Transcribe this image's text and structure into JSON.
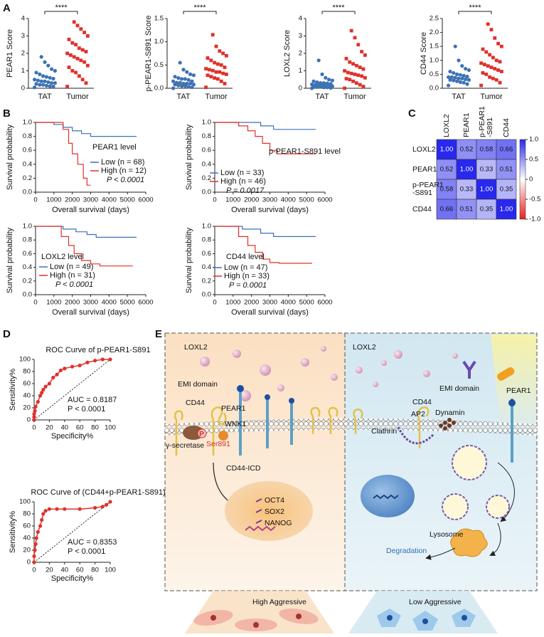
{
  "panel_labels": [
    "A",
    "B",
    "C",
    "D",
    "E"
  ],
  "chart_data": [
    {
      "type": "strip",
      "ylabel": "PEAR1 Score",
      "ylim": [
        0,
        4
      ],
      "yticks": [
        0,
        1,
        2,
        3,
        4
      ],
      "categories": [
        "TAT",
        "Tumor"
      ],
      "colors": [
        "#3d72b4",
        "#e0312b"
      ],
      "values": [
        [
          0.05,
          0.1,
          0.12,
          0.15,
          0.2,
          0.2,
          0.25,
          0.3,
          0.3,
          0.35,
          0.4,
          0.4,
          0.45,
          0.5,
          0.55,
          0.6,
          0.65,
          0.7,
          0.8,
          0.9,
          1.0,
          1.1,
          1.3,
          1.5,
          1.8
        ],
        [
          0.1,
          0.3,
          0.5,
          0.7,
          0.9,
          1.0,
          1.2,
          1.3,
          1.5,
          1.6,
          1.7,
          1.8,
          1.9,
          2.0,
          2.1,
          2.2,
          2.3,
          2.5,
          2.6,
          2.8,
          3.0,
          3.2,
          3.4,
          3.6,
          3.8
        ]
      ],
      "annotation": "****"
    },
    {
      "type": "strip",
      "ylabel": "p-PEAR1-S891 Score",
      "ylim": [
        0,
        1.5
      ],
      "yticks": [
        {
          "value": 0,
          "label": "0.0"
        },
        0.5,
        {
          "value": 1,
          "label": "1.0"
        },
        1.5
      ],
      "categories": [
        "TAT",
        "Tumor"
      ],
      "colors": [
        "#3d72b4",
        "#e0312b"
      ],
      "values": [
        [
          0,
          0.02,
          0.03,
          0.05,
          0.05,
          0.06,
          0.08,
          0.08,
          0.1,
          0.1,
          0.1,
          0.12,
          0.12,
          0.15,
          0.15,
          0.18,
          0.2,
          0.2,
          0.22,
          0.25,
          0.28,
          0.3,
          0.35,
          0.4,
          0.55
        ],
        [
          0.02,
          0.1,
          0.15,
          0.2,
          0.22,
          0.25,
          0.28,
          0.3,
          0.32,
          0.35,
          0.35,
          0.38,
          0.4,
          0.42,
          0.45,
          0.5,
          0.52,
          0.55,
          0.6,
          0.65,
          0.7,
          0.75,
          0.8,
          0.9,
          1.15
        ]
      ],
      "annotation": "****"
    },
    {
      "type": "strip",
      "ylabel": "LOXL2 Score",
      "ylim": [
        0,
        4
      ],
      "yticks": [
        0,
        1,
        2,
        3,
        4
      ],
      "categories": [
        "TAT",
        "Tumor"
      ],
      "colors": [
        "#3d72b4",
        "#e0312b"
      ],
      "values": [
        [
          0,
          0.02,
          0.05,
          0.05,
          0.08,
          0.1,
          0.1,
          0.12,
          0.15,
          0.15,
          0.18,
          0.2,
          0.2,
          0.22,
          0.25,
          0.28,
          0.3,
          0.3,
          0.35,
          0.4,
          0.45,
          0.5,
          0.6,
          0.8,
          1.6
        ],
        [
          0,
          0.1,
          0.2,
          0.3,
          0.4,
          0.5,
          0.55,
          0.6,
          0.7,
          0.75,
          0.8,
          0.85,
          0.9,
          1.0,
          1.1,
          1.2,
          1.3,
          1.4,
          1.5,
          1.7,
          1.9,
          2.1,
          2.5,
          2.9,
          3.3
        ]
      ],
      "annotation": "****"
    },
    {
      "type": "strip",
      "ylabel": "CD44  Score",
      "ylim": [
        0,
        2.5
      ],
      "yticks": [
        {
          "value": 0,
          "label": "0.0"
        },
        0.5,
        {
          "value": 1,
          "label": "1.0"
        },
        1.5,
        {
          "value": 2,
          "label": "2.0"
        },
        2.5
      ],
      "categories": [
        "TAT",
        "Tumor"
      ],
      "colors": [
        "#3d72b4",
        "#e0312b"
      ],
      "values": [
        [
          0.1,
          0.15,
          0.2,
          0.22,
          0.25,
          0.28,
          0.3,
          0.3,
          0.32,
          0.35,
          0.35,
          0.38,
          0.4,
          0.4,
          0.42,
          0.45,
          0.48,
          0.5,
          0.55,
          0.6,
          0.65,
          0.7,
          0.8,
          1.0,
          1.5
        ],
        [
          0.1,
          0.2,
          0.3,
          0.35,
          0.4,
          0.5,
          0.55,
          0.6,
          0.65,
          0.7,
          0.75,
          0.8,
          0.85,
          0.9,
          0.95,
          1.0,
          1.1,
          1.2,
          1.3,
          1.4,
          1.5,
          1.6,
          1.8,
          2.1,
          2.3
        ]
      ],
      "annotation": "****"
    },
    {
      "type": "survival",
      "ylabel": "Survival probability",
      "xlabel": "Overall survival (days)",
      "xlim": [
        0,
        6000
      ],
      "xticks": [
        0,
        1000,
        2000,
        3000,
        4000,
        5000,
        6000
      ],
      "ylim": [
        0,
        1
      ],
      "yticks": [
        {
          "value": 0,
          "label": "0.0"
        },
        0.2,
        0.4,
        0.6,
        0.8,
        {
          "value": 1,
          "label": "1.0"
        }
      ],
      "legend_title": "PEAR1 level",
      "series": [
        {
          "name": "Low (n = 68)",
          "color": "#3d72b4",
          "x": [
            0,
            1000,
            1000,
            1500,
            1500,
            2000,
            2000,
            2500,
            2500,
            3000,
            3000,
            5500
          ],
          "values": [
            1,
            1,
            0.97,
            0.97,
            0.93,
            0.93,
            0.88,
            0.88,
            0.84,
            0.84,
            0.8,
            0.8
          ]
        },
        {
          "name": "High (n = 12)",
          "color": "#e0312b",
          "x": [
            0,
            1500,
            1500,
            1800,
            1800,
            2000,
            2000,
            2300,
            2300,
            2600,
            2600,
            2800,
            2800,
            3000
          ],
          "values": [
            1,
            1,
            0.9,
            0.9,
            0.7,
            0.7,
            0.55,
            0.55,
            0.4,
            0.4,
            0.2,
            0.2,
            0.1,
            0.1
          ]
        }
      ],
      "annotation": "P < 0.0001"
    },
    {
      "type": "survival",
      "ylabel": "Survival probability",
      "xlabel": "Overall survival (days)",
      "xlim": [
        0,
        6000
      ],
      "xticks": [
        0,
        1000,
        2000,
        3000,
        4000,
        5000,
        6000
      ],
      "ylim": [
        0,
        1
      ],
      "yticks": [
        {
          "value": 0,
          "label": "0.0"
        },
        0.2,
        0.4,
        0.6,
        0.8,
        {
          "value": 1,
          "label": "1.0"
        }
      ],
      "legend_title": "p-PEAR1-S891 level",
      "series": [
        {
          "name": "Low (n = 33)",
          "color": "#3d72b4",
          "x": [
            0,
            2500,
            2500,
            3200,
            3200,
            5500
          ],
          "values": [
            1,
            1,
            0.95,
            0.95,
            0.9,
            0.9
          ]
        },
        {
          "name": "High (n = 46)",
          "color": "#e0312b",
          "x": [
            0,
            1300,
            1300,
            1800,
            1800,
            2200,
            2200,
            2600,
            2600,
            3000,
            3000,
            3400,
            3400,
            5500
          ],
          "values": [
            1,
            1,
            0.95,
            0.95,
            0.88,
            0.88,
            0.8,
            0.8,
            0.7,
            0.7,
            0.6,
            0.6,
            0.55,
            0.55
          ]
        }
      ],
      "annotation": "P = 0.0017"
    },
    {
      "type": "survival",
      "ylabel": "Survival probability",
      "xlabel": "Overall survival (days)",
      "xlim": [
        0,
        6000
      ],
      "xticks": [
        0,
        1000,
        2000,
        3000,
        4000,
        5000,
        6000
      ],
      "ylim": [
        0,
        1
      ],
      "yticks": [
        {
          "value": 0,
          "label": "0.0"
        },
        0.2,
        0.4,
        0.6,
        0.8,
        {
          "value": 1,
          "label": "1.0"
        }
      ],
      "legend_title": "LOXL2 level",
      "series": [
        {
          "name": "Low (n = 49)",
          "color": "#3d72b4",
          "x": [
            0,
            1500,
            1500,
            2200,
            2200,
            2800,
            2800,
            3300,
            3300,
            5500
          ],
          "values": [
            1,
            1,
            0.96,
            0.96,
            0.92,
            0.92,
            0.88,
            0.88,
            0.84,
            0.84
          ]
        },
        {
          "name": "High (n = 31)",
          "color": "#e0312b",
          "x": [
            0,
            1400,
            1400,
            1800,
            1800,
            2100,
            2100,
            2500,
            2500,
            3000,
            3000,
            3500,
            3500,
            5300
          ],
          "values": [
            1,
            1,
            0.85,
            0.85,
            0.72,
            0.72,
            0.6,
            0.6,
            0.5,
            0.5,
            0.45,
            0.45,
            0.42,
            0.42
          ]
        }
      ],
      "annotation": "P < 0.0001"
    },
    {
      "type": "survival",
      "ylabel": "Survival probability",
      "xlabel": "Overall survival (days)",
      "xlim": [
        0,
        6000
      ],
      "xticks": [
        0,
        1000,
        2000,
        3000,
        4000,
        5000,
        6000
      ],
      "ylim": [
        0,
        1
      ],
      "yticks": [
        {
          "value": 0,
          "label": "0.0"
        },
        0.2,
        0.4,
        0.6,
        0.8,
        {
          "value": 1,
          "label": "1.0"
        }
      ],
      "legend_title": "CD44 level",
      "series": [
        {
          "name": "Low (n = 47)",
          "color": "#3d72b4",
          "x": [
            0,
            1500,
            1500,
            2500,
            2500,
            3200,
            3200,
            5500
          ],
          "values": [
            1,
            1,
            0.96,
            0.96,
            0.9,
            0.9,
            0.85,
            0.85
          ]
        },
        {
          "name": "High (n = 33)",
          "color": "#e0312b",
          "x": [
            0,
            1300,
            1300,
            1800,
            1800,
            2200,
            2200,
            2600,
            2600,
            3000,
            3000,
            3500,
            3500,
            5300
          ],
          "values": [
            1,
            1,
            0.85,
            0.85,
            0.72,
            0.72,
            0.62,
            0.62,
            0.52,
            0.52,
            0.47,
            0.47,
            0.46,
            0.46
          ]
        }
      ],
      "annotation": "P = 0.0001"
    },
    {
      "type": "heatmap",
      "categories": [
        "LOXL2",
        "PEAR1",
        "p-PEAR1\n-S891",
        "CD44"
      ],
      "values": [
        [
          1,
          0.52,
          0.58,
          0.66
        ],
        [
          0.52,
          1,
          0.33,
          0.51
        ],
        [
          0.58,
          0.33,
          1,
          0.35
        ],
        [
          0.66,
          0.51,
          0.35,
          1
        ]
      ],
      "value_labels": [
        [
          "1.00",
          "0.52",
          "0.58",
          "0.66"
        ],
        [
          "0.52",
          "1.00",
          "0.33",
          "0.51"
        ],
        [
          "0.58",
          "0.33",
          "1.00",
          "0.35"
        ],
        [
          "0.66",
          "0.51",
          "0.35",
          "1.00"
        ]
      ],
      "zlim": [
        -1,
        1
      ],
      "zticks": [
        {
          "value": 1,
          "label": "1.0"
        },
        0.5,
        0,
        -0.5,
        {
          "value": -1,
          "label": "-1.0"
        }
      ],
      "colors": [
        "#e8201c",
        "#ffffff",
        "#2828ee"
      ]
    },
    {
      "type": "roc",
      "title": "ROC Curve of p-PEAR1-S891",
      "xlabel": "Specificity%",
      "ylabel": "Sensitivity%",
      "xlim": [
        0,
        100
      ],
      "ylim": [
        0,
        100
      ],
      "xticks": [
        0,
        20,
        40,
        60,
        80,
        100
      ],
      "yticks": [
        0,
        20,
        40,
        60,
        80,
        100
      ],
      "color": "#e0312b",
      "x": [
        0,
        0,
        0,
        1,
        2,
        5,
        8,
        10,
        12,
        15,
        20,
        25,
        30,
        35,
        40,
        50,
        60,
        70,
        80,
        90,
        100
      ],
      "values": [
        0,
        5,
        10,
        15,
        22,
        30,
        40,
        45,
        50,
        55,
        60,
        70,
        75,
        82,
        85,
        88,
        90,
        95,
        98,
        100,
        100
      ],
      "annotations": [
        "AUC = 0.8187",
        "P < 0.0001"
      ]
    },
    {
      "type": "roc",
      "title": "ROC Curve of (CD44+p-PEAR1-S891)",
      "xlabel": "Specificity%",
      "ylabel": "Sensitivity%",
      "xlim": [
        0,
        100
      ],
      "ylim": [
        0,
        100
      ],
      "xticks": [
        0,
        20,
        40,
        60,
        80,
        100
      ],
      "yticks": [
        0,
        20,
        40,
        60,
        80,
        100
      ],
      "color": "#e0312b",
      "x": [
        0,
        0,
        1,
        2,
        3,
        5,
        8,
        10,
        12,
        15,
        20,
        30,
        40,
        60,
        80,
        90,
        95,
        100
      ],
      "values": [
        0,
        10,
        20,
        30,
        40,
        50,
        60,
        70,
        80,
        85,
        88,
        88,
        88,
        88,
        90,
        92,
        95,
        100
      ],
      "annotations": [
        "AUC = 0.8353",
        "P < 0.0001"
      ]
    }
  ],
  "diagram": {
    "left": {
      "ligand": "LOXL2",
      "emi": "EMI domain",
      "cd44": "CD44",
      "pear1": "PEAR1",
      "secretase": "γ-secretase",
      "p": "P",
      "ser": "Ser891",
      "wnk1": "WNK1",
      "icd": "CD44-ICD",
      "genes": [
        "OCT4",
        "SOX2",
        "NANOG"
      ],
      "phenotype": "High Aggressive"
    },
    "right": {
      "ligand": "LOXL2",
      "emi": "EMI domain",
      "cd44": "CD44",
      "pear1": "PEAR1",
      "ap2": "AP2",
      "dynamin": "Dynamin",
      "clathrin": "Clathrin",
      "lysosome": "Lysosome",
      "degradation": "Degradation",
      "phenotype": "Low Aggressive"
    }
  }
}
